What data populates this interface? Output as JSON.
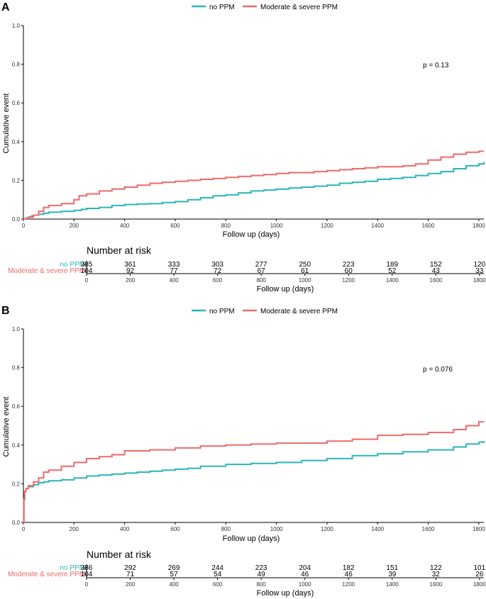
{
  "colors": {
    "no_ppm": "#2bb5b8",
    "severe_ppm": "#ee6a6a",
    "axis": "#000000"
  },
  "chart_data": [
    {
      "panel_label": "A",
      "type": "line",
      "step": true,
      "legend_position": "top",
      "series": [
        {
          "name": "no PPM",
          "x": [
            0,
            10,
            20,
            30,
            40,
            60,
            80,
            100,
            150,
            200,
            230,
            250,
            300,
            350,
            400,
            450,
            500,
            550,
            600,
            650,
            700,
            750,
            800,
            850,
            900,
            950,
            1000,
            1050,
            1100,
            1150,
            1200,
            1250,
            1300,
            1350,
            1400,
            1450,
            1500,
            1550,
            1600,
            1650,
            1700,
            1750,
            1800,
            1820
          ],
          "y": [
            0,
            0.005,
            0.01,
            0.015,
            0.02,
            0.025,
            0.03,
            0.035,
            0.04,
            0.045,
            0.05,
            0.055,
            0.06,
            0.07,
            0.075,
            0.078,
            0.08,
            0.085,
            0.09,
            0.1,
            0.11,
            0.12,
            0.125,
            0.135,
            0.145,
            0.15,
            0.155,
            0.16,
            0.165,
            0.17,
            0.175,
            0.185,
            0.19,
            0.195,
            0.205,
            0.21,
            0.215,
            0.225,
            0.235,
            0.245,
            0.26,
            0.275,
            0.285,
            0.295
          ]
        },
        {
          "name": "Moderate & severe PPM",
          "x": [
            0,
            20,
            40,
            60,
            80,
            100,
            150,
            200,
            220,
            250,
            300,
            350,
            400,
            450,
            500,
            550,
            600,
            650,
            700,
            750,
            800,
            850,
            900,
            950,
            1000,
            1050,
            1100,
            1150,
            1200,
            1250,
            1300,
            1350,
            1400,
            1450,
            1500,
            1550,
            1600,
            1650,
            1700,
            1750,
            1800,
            1820
          ],
          "y": [
            0,
            0.01,
            0.02,
            0.04,
            0.06,
            0.07,
            0.08,
            0.1,
            0.12,
            0.13,
            0.145,
            0.155,
            0.165,
            0.175,
            0.185,
            0.19,
            0.195,
            0.2,
            0.205,
            0.21,
            0.215,
            0.22,
            0.225,
            0.23,
            0.235,
            0.24,
            0.24,
            0.245,
            0.25,
            0.255,
            0.26,
            0.265,
            0.27,
            0.27,
            0.275,
            0.285,
            0.305,
            0.32,
            0.335,
            0.345,
            0.35,
            0.35
          ]
        }
      ],
      "xlabel": "Follow up (days)",
      "ylabel": "Cumulative event",
      "xlim": [
        0,
        1820
      ],
      "ylim": [
        0,
        1.0
      ],
      "xticks": [
        0,
        200,
        400,
        600,
        800,
        1000,
        1200,
        1400,
        1600,
        1800
      ],
      "yticks": [
        "0.0",
        "0.2",
        "0.4",
        "0.6",
        "0.8",
        "1.0"
      ],
      "annotation": "p = 0.13",
      "risk_table": {
        "title": "Number at risk",
        "xlabel": "Follow up (days)",
        "rows": [
          {
            "label": "no PPM",
            "values": [
              "385",
              "361",
              "333",
              "303",
              "277",
              "250",
              "223",
              "189",
              "152",
              "120"
            ]
          },
          {
            "label": "Moderate & severe PPM",
            "values": [
              "104",
              "92",
              "77",
              "72",
              "67",
              "61",
              "60",
              "52",
              "43",
              "33"
            ]
          }
        ]
      }
    },
    {
      "panel_label": "B",
      "type": "line",
      "step": true,
      "legend_position": "top",
      "series": [
        {
          "name": "no PPM",
          "x": [
            0,
            2,
            5,
            10,
            20,
            40,
            60,
            80,
            100,
            150,
            200,
            250,
            300,
            350,
            400,
            450,
            500,
            550,
            600,
            650,
            700,
            800,
            900,
            1000,
            1100,
            1200,
            1300,
            1400,
            1500,
            1600,
            1700,
            1750,
            1800,
            1820
          ],
          "y": [
            0,
            0.12,
            0.16,
            0.175,
            0.185,
            0.195,
            0.205,
            0.21,
            0.215,
            0.22,
            0.23,
            0.24,
            0.245,
            0.25,
            0.255,
            0.26,
            0.265,
            0.27,
            0.275,
            0.28,
            0.29,
            0.3,
            0.305,
            0.31,
            0.32,
            0.33,
            0.345,
            0.355,
            0.365,
            0.375,
            0.39,
            0.405,
            0.415,
            0.42
          ]
        },
        {
          "name": "Moderate & severe PPM",
          "x": [
            0,
            2,
            5,
            10,
            20,
            40,
            60,
            80,
            100,
            150,
            200,
            250,
            300,
            350,
            400,
            500,
            600,
            700,
            800,
            900,
            1000,
            1100,
            1200,
            1300,
            1400,
            1500,
            1600,
            1700,
            1750,
            1800,
            1820
          ],
          "y": [
            0,
            0.12,
            0.16,
            0.175,
            0.19,
            0.21,
            0.23,
            0.26,
            0.27,
            0.29,
            0.31,
            0.33,
            0.34,
            0.35,
            0.37,
            0.375,
            0.385,
            0.395,
            0.4,
            0.405,
            0.41,
            0.41,
            0.42,
            0.43,
            0.45,
            0.455,
            0.465,
            0.48,
            0.5,
            0.52,
            0.52
          ]
        }
      ],
      "xlabel": "Follow up (days)",
      "ylabel": "Cumulative event",
      "xlim": [
        0,
        1820
      ],
      "ylim": [
        0,
        1.0
      ],
      "xticks": [
        0,
        200,
        400,
        600,
        800,
        1000,
        1200,
        1400,
        1600,
        1800
      ],
      "yticks": [
        "0.0",
        "0.2",
        "0.4",
        "0.6",
        "0.8",
        "1.0"
      ],
      "annotation": "p = 0.076",
      "risk_table": {
        "title": "Number at risk",
        "xlabel": "Follow up (days)",
        "rows": [
          {
            "label": "no PPM",
            "values": [
              "386",
              "292",
              "269",
              "244",
              "223",
              "204",
              "182",
              "151",
              "122",
              "101"
            ]
          },
          {
            "label": "Moderate & severe PPM",
            "values": [
              "104",
              "71",
              "57",
              "54",
              "49",
              "46",
              "46",
              "39",
              "32",
              "26"
            ]
          }
        ]
      }
    }
  ]
}
